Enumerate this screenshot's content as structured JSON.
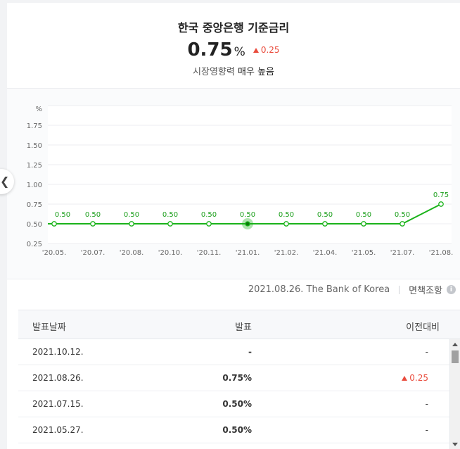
{
  "header": {
    "title": "한국 중앙은행 기준금리",
    "rate_value": "0.75",
    "rate_unit": "%",
    "rate_change": "0.25",
    "impact_label": "시장영향력",
    "impact_value": "매우 높음"
  },
  "chart_data": {
    "type": "line",
    "title": "",
    "xlabel": "",
    "ylabel": "%",
    "categories": [
      "'20.05.",
      "'20.07.",
      "'20.08.",
      "'20.10.",
      "'20.11.",
      "'21.01.",
      "'21.02.",
      "'21.04.",
      "'21.05.",
      "'21.07.",
      "'21.08."
    ],
    "series": [
      {
        "values": [
          0.5,
          0.5,
          0.5,
          0.5,
          0.5,
          0.5,
          0.5,
          0.5,
          0.5,
          0.5,
          0.75
        ]
      }
    ],
    "point_labels": [
      "0.50",
      "0.50",
      "0.50",
      "0.50",
      "0.50",
      "0.50",
      "0.50",
      "0.50",
      "0.50",
      "0.50",
      "0.75"
    ],
    "y_ticks": [
      "0.25",
      "0.50",
      "0.75",
      "1.00",
      "1.25",
      "1.50",
      "1.75"
    ],
    "ylim": [
      0.25,
      2.0
    ],
    "grid": true,
    "highlight_index": 5,
    "line_color": "#1ab31a"
  },
  "source": {
    "text": "2021.08.26. The Bank of Korea",
    "disclaimer": "면책조항",
    "info_icon": "i"
  },
  "table": {
    "headers": [
      "발표날짜",
      "발표",
      "이전대비"
    ],
    "rows": [
      {
        "date": "2021.10.12.",
        "value": "-",
        "prev": "-",
        "up": false
      },
      {
        "date": "2021.08.26.",
        "value": "0.75%",
        "prev": "0.25",
        "up": true
      },
      {
        "date": "2021.07.15.",
        "value": "0.50%",
        "prev": "-",
        "up": false
      },
      {
        "date": "2021.05.27.",
        "value": "0.50%",
        "prev": "-",
        "up": false
      }
    ]
  },
  "nav": {
    "prev_icon": "chevron-left-icon"
  }
}
